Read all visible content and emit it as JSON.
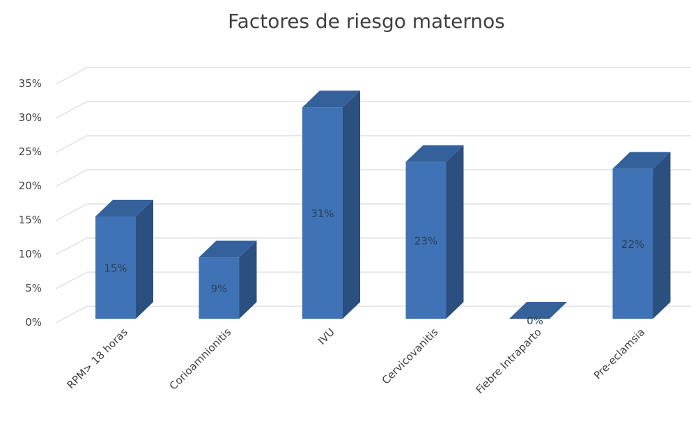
{
  "chart_data": {
    "type": "bar",
    "title": "Factores de riesgo maternos",
    "categories": [
      "RPM> 18 horas",
      "Corioamnionitis",
      "IVU",
      "Cervicovanitis",
      "Fiebre Intraparto",
      "Pre-eclamsia"
    ],
    "values": [
      15,
      9,
      31,
      23,
      0,
      22
    ],
    "data_labels": [
      "15%",
      "9%",
      "31%",
      "23%",
      "0%",
      "22%"
    ],
    "y_ticks": [
      "0%",
      "5%",
      "10%",
      "15%",
      "20%",
      "25%",
      "30%",
      "35%"
    ],
    "ylim": [
      0,
      35
    ],
    "grid": true,
    "legend": false,
    "style": "3d-column",
    "colors": {
      "bar_front": "#3f73b5",
      "bar_side": "#2b4f7e",
      "bar_top": "#35619b",
      "grid": "#d9d9d9",
      "text": "#404040"
    }
  }
}
